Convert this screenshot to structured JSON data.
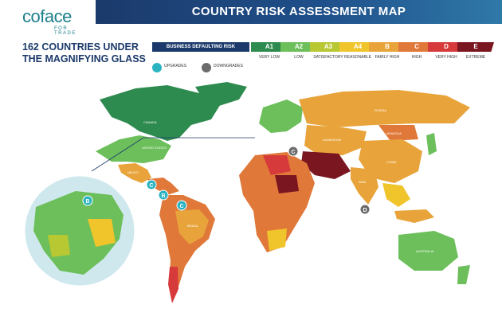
{
  "header": {
    "title": "COUNTRY RISK ASSESSMENT MAP"
  },
  "logo": {
    "wordmark": "coface",
    "tagline": "FOR TRADE"
  },
  "headline": {
    "line1": "162 COUNTRIES UNDER",
    "line2": "THE MAGNIFYING GLASS"
  },
  "legend": {
    "title": "BUSINESS DEFAULTING RISK",
    "levels": [
      {
        "code": "A1",
        "desc": "VERY LOW",
        "color": "#2e8b4f"
      },
      {
        "code": "A2",
        "desc": "LOW",
        "color": "#6cbf5a"
      },
      {
        "code": "A3",
        "desc": "SATISFACTORY",
        "color": "#b8c832"
      },
      {
        "code": "A4",
        "desc": "REASONABLE",
        "color": "#f0c42b"
      },
      {
        "code": "B",
        "desc": "FAIRLY HIGH",
        "color": "#e8a43a"
      },
      {
        "code": "C",
        "desc": "HIGH",
        "color": "#e0783a"
      },
      {
        "code": "D",
        "desc": "VERY HIGH",
        "color": "#d63a3a"
      },
      {
        "code": "E",
        "desc": "EXTREME",
        "color": "#7a1620"
      }
    ]
  },
  "trends": {
    "upgrades": {
      "label": "UPGRADES",
      "color": "#2bb3c0"
    },
    "downgrades": {
      "label": "DOWNGRADES",
      "color": "#6b6b6b"
    }
  },
  "map": {
    "countries": [
      "CANADA",
      "UNITED STATES",
      "MEXICO",
      "BRAZIL",
      "RUSSIA",
      "KAZAKHSTAN",
      "MONGOLIA",
      "CHINA",
      "INDIA",
      "AUSTRALIA"
    ],
    "markers": [
      "C",
      "B",
      "C",
      "C",
      "D",
      "C"
    ]
  }
}
